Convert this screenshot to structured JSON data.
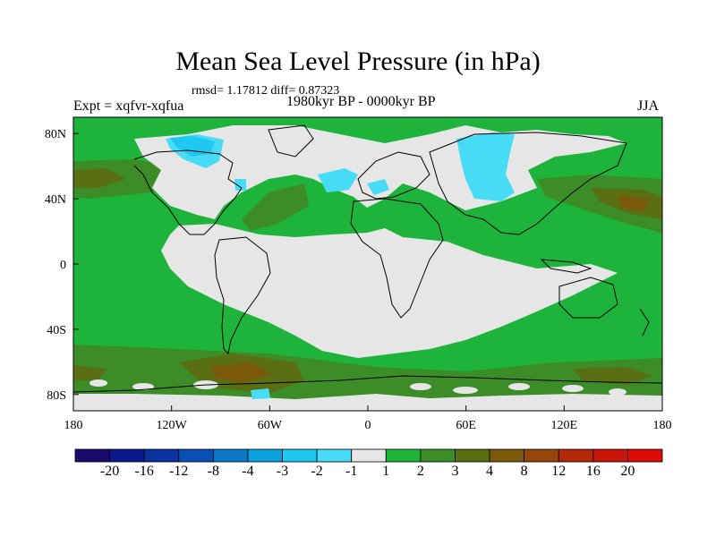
{
  "header": {
    "title": "Mean Sea Level Pressure (in hPa)",
    "stats": "rmsd= 1.17812 diff= 0.87323",
    "experiment": "Expt = xqfvr-xqfua",
    "period": "1980kyr BP - 0000kyr BP",
    "season": "JJA"
  },
  "axes": {
    "x_ticks": [
      "180",
      "120W",
      "60W",
      "0",
      "60E",
      "120E",
      "180"
    ],
    "y_ticks": [
      "80N",
      "40N",
      "0",
      "40S",
      "80S"
    ]
  },
  "colorbar": {
    "colors": [
      "#1a0a6e",
      "#0a1a8c",
      "#0a32a0",
      "#0a50b4",
      "#0a78c8",
      "#0aa0dc",
      "#1ec8f0",
      "#46dcf5",
      "#e6e6e6",
      "#1eb43c",
      "#3c8c28",
      "#5a6e14",
      "#7a5a0a",
      "#96460a",
      "#b4280a",
      "#c8140a",
      "#dc0a0a"
    ],
    "labels": [
      "-20",
      "-16",
      "-12",
      "-8",
      "-4",
      "-3",
      "-2",
      "-1",
      "1",
      "2",
      "3",
      "4",
      "8",
      "12",
      "16",
      "20"
    ]
  },
  "map_colors": {
    "neutral": "#e6e6e6",
    "pos1": "#1eb43c",
    "pos2": "#3c8c28",
    "pos3": "#5a6e14",
    "pos4": "#7a5a0a",
    "neg1": "#46dcf5",
    "neg2": "#1ec8f0",
    "neg3": "#0aa0dc"
  }
}
